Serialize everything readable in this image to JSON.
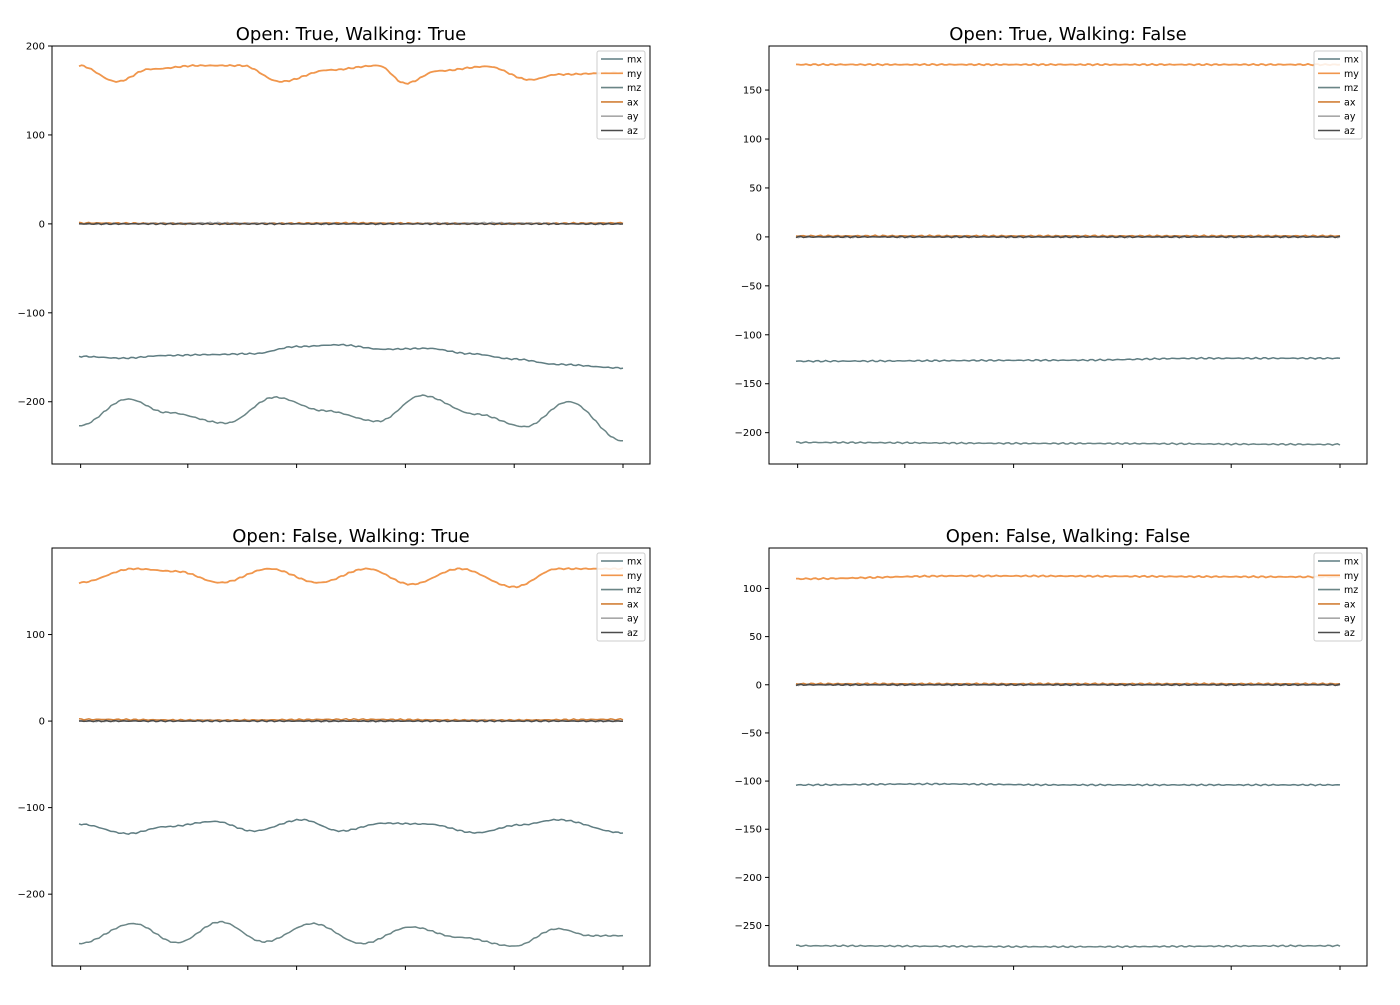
{
  "figure": {
    "title": "",
    "legend_labels": [
      "mx",
      "my",
      "mz",
      "ax",
      "ay",
      "az"
    ],
    "colors": {
      "mx": "#5f7d82",
      "my": "#f0964c",
      "mz": "#6a8586",
      "ax": "#d28038",
      "ay": "#a8a8a8",
      "az": "#4b4b4b"
    }
  },
  "chart_data": [
    {
      "type": "line",
      "title": "Open: True, Walking: True",
      "xlabel": "",
      "ylabel": "",
      "ylim": [
        -270,
        200
      ],
      "yticks": [
        -200,
        -100,
        0,
        100,
        200
      ],
      "ytick_labels": [
        "−200",
        "−100",
        "0",
        "100",
        "200"
      ],
      "xlim": [
        0,
        1
      ],
      "xticks": [
        0.003,
        0.2,
        0.4,
        0.6,
        0.8,
        1.0
      ],
      "legend": "top-right",
      "grid": false,
      "series": [
        {
          "name": "mx",
          "x": [
            0,
            0.08,
            0.16,
            0.24,
            0.32,
            0.4,
            0.48,
            0.56,
            0.64,
            0.72,
            0.8,
            0.88,
            1.0
          ],
          "values": [
            -149,
            -151,
            -148,
            -147,
            -146,
            -138,
            -136,
            -141,
            -140,
            -146,
            -152,
            -158,
            -162
          ]
        },
        {
          "name": "my",
          "x": [
            0,
            0.07,
            0.13,
            0.22,
            0.3,
            0.37,
            0.46,
            0.55,
            0.6,
            0.66,
            0.75,
            0.83,
            0.88,
            1.0
          ],
          "values": [
            178,
            160,
            174,
            178,
            178,
            160,
            173,
            178,
            158,
            172,
            177,
            162,
            168,
            170
          ]
        },
        {
          "name": "mz",
          "x": [
            0,
            0.09,
            0.16,
            0.27,
            0.36,
            0.45,
            0.55,
            0.63,
            0.73,
            0.82,
            0.9,
            1.0
          ],
          "values": [
            -227,
            -197,
            -212,
            -224,
            -195,
            -210,
            -222,
            -193,
            -214,
            -228,
            -200,
            -244
          ]
        },
        {
          "name": "ax",
          "x": [
            0,
            0.25,
            0.5,
            0.75,
            1.0
          ],
          "values": [
            1,
            0,
            1,
            0,
            1
          ]
        },
        {
          "name": "ay",
          "x": [
            0,
            0.25,
            0.5,
            0.75,
            1.0
          ],
          "values": [
            0,
            1,
            0,
            1,
            0
          ]
        },
        {
          "name": "az",
          "x": [
            0,
            0.25,
            0.5,
            0.75,
            1.0
          ],
          "values": [
            0,
            0,
            0,
            0,
            0
          ]
        }
      ]
    },
    {
      "type": "line",
      "title": "Open: True, Walking: False",
      "xlabel": "",
      "ylabel": "",
      "ylim": [
        -232,
        195
      ],
      "yticks": [
        -200,
        -150,
        -100,
        -50,
        0,
        50,
        100,
        150
      ],
      "ytick_labels": [
        "−200",
        "−150",
        "−100",
        "−50",
        "0",
        "50",
        "100",
        "150"
      ],
      "xlim": [
        0,
        1
      ],
      "xticks": [
        0.003,
        0.2,
        0.4,
        0.6,
        0.8,
        1.0
      ],
      "legend": "top-right",
      "grid": false,
      "series": [
        {
          "name": "mx",
          "x": [
            0,
            0.5,
            0.75,
            1.0
          ],
          "values": [
            -127,
            -126,
            -124,
            -124
          ]
        },
        {
          "name": "my",
          "x": [
            0,
            1.0
          ],
          "values": [
            176,
            176
          ]
        },
        {
          "name": "mz",
          "x": [
            0,
            0.5,
            1.0
          ],
          "values": [
            -210,
            -211,
            -212
          ]
        },
        {
          "name": "ax",
          "x": [
            0,
            1.0
          ],
          "values": [
            1,
            1
          ]
        },
        {
          "name": "ay",
          "x": [
            0,
            1.0
          ],
          "values": [
            0,
            0
          ]
        },
        {
          "name": "az",
          "x": [
            0,
            1.0
          ],
          "values": [
            0,
            0
          ]
        }
      ]
    },
    {
      "type": "line",
      "title": "Open: False, Walking: True",
      "xlabel": "",
      "ylabel": "",
      "ylim": [
        -283,
        200
      ],
      "yticks": [
        -200,
        -100,
        0,
        100
      ],
      "ytick_labels": [
        "−200",
        "−100",
        "0",
        "100"
      ],
      "xlim": [
        0,
        1
      ],
      "xticks": [
        0.003,
        0.2,
        0.4,
        0.6,
        0.8,
        1.0
      ],
      "legend": "top-right",
      "grid": false,
      "series": [
        {
          "name": "mx",
          "x": [
            0,
            0.09,
            0.16,
            0.25,
            0.32,
            0.41,
            0.48,
            0.56,
            0.64,
            0.73,
            0.81,
            0.88,
            1.0
          ],
          "values": [
            -119,
            -130,
            -122,
            -116,
            -127,
            -114,
            -127,
            -118,
            -119,
            -129,
            -120,
            -114,
            -129
          ]
        },
        {
          "name": "my",
          "x": [
            0,
            0.1,
            0.18,
            0.26,
            0.35,
            0.44,
            0.53,
            0.61,
            0.7,
            0.8,
            0.88,
            1.0
          ],
          "values": [
            160,
            176,
            173,
            160,
            176,
            160,
            176,
            158,
            176,
            155,
            176,
            176
          ]
        },
        {
          "name": "mz",
          "x": [
            0,
            0.1,
            0.18,
            0.26,
            0.34,
            0.43,
            0.52,
            0.61,
            0.7,
            0.8,
            0.88,
            0.94,
            1.0
          ],
          "values": [
            -257,
            -234,
            -256,
            -232,
            -255,
            -234,
            -257,
            -238,
            -250,
            -260,
            -240,
            -248,
            -248
          ]
        },
        {
          "name": "ax",
          "x": [
            0,
            0.25,
            0.5,
            0.75,
            1.0
          ],
          "values": [
            2,
            1,
            2,
            1,
            2
          ]
        },
        {
          "name": "ay",
          "x": [
            0,
            0.25,
            0.5,
            0.75,
            1.0
          ],
          "values": [
            0,
            1,
            0,
            1,
            0
          ]
        },
        {
          "name": "az",
          "x": [
            0,
            0.25,
            0.5,
            0.75,
            1.0
          ],
          "values": [
            0,
            0,
            0,
            0,
            0
          ]
        }
      ]
    },
    {
      "type": "line",
      "title": "Open: False, Walking: False",
      "xlabel": "",
      "ylabel": "",
      "ylim": [
        -292,
        142
      ],
      "yticks": [
        -250,
        -200,
        -150,
        -100,
        -50,
        0,
        50,
        100
      ],
      "ytick_labels": [
        "−250",
        "−200",
        "−150",
        "−100",
        "−50",
        "0",
        "50",
        "100"
      ],
      "xlim": [
        0,
        1
      ],
      "xticks": [
        0.003,
        0.2,
        0.4,
        0.6,
        0.8,
        1.0
      ],
      "legend": "top-right",
      "grid": false,
      "series": [
        {
          "name": "mx",
          "x": [
            0,
            0.25,
            0.5,
            1.0
          ],
          "values": [
            -104,
            -103,
            -104,
            -104
          ]
        },
        {
          "name": "my",
          "x": [
            0,
            0.3,
            1.0
          ],
          "values": [
            110,
            113,
            112
          ]
        },
        {
          "name": "mz",
          "x": [
            0,
            0.5,
            1.0
          ],
          "values": [
            -271,
            -272,
            -271
          ]
        },
        {
          "name": "ax",
          "x": [
            0,
            1.0
          ],
          "values": [
            1,
            1
          ]
        },
        {
          "name": "ay",
          "x": [
            0,
            1.0
          ],
          "values": [
            0,
            0
          ]
        },
        {
          "name": "az",
          "x": [
            0,
            1.0
          ],
          "values": [
            0,
            0
          ]
        }
      ]
    }
  ]
}
